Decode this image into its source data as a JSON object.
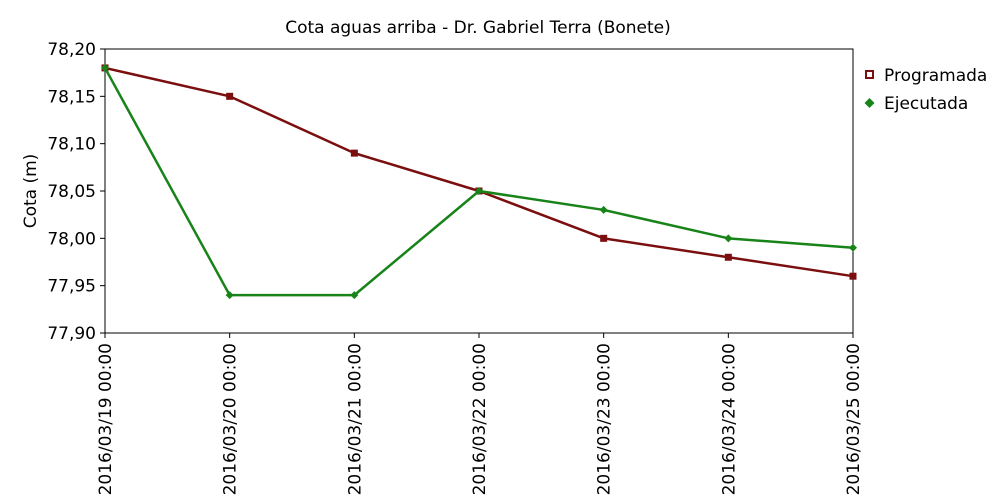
{
  "chart_data": {
    "type": "line",
    "title": "Cota aguas arriba - Dr. Gabriel Terra (Bonete)",
    "xlabel": "",
    "ylabel": "Cota (m)",
    "ylim": [
      77.9,
      78.2
    ],
    "yticks": [
      "78,20",
      "78,15",
      "78,10",
      "78,05",
      "78,00",
      "77,95",
      "77,90"
    ],
    "ytick_values": [
      78.2,
      78.15,
      78.1,
      78.05,
      78.0,
      77.95,
      77.9
    ],
    "categories": [
      "2016/03/19 00:00",
      "2016/03/20 00:00",
      "2016/03/21 00:00",
      "2016/03/22 00:00",
      "2016/03/23 00:00",
      "2016/03/24 00:00",
      "2016/03/25 00:00"
    ],
    "grid": false,
    "legend_position": "right",
    "series": [
      {
        "name": "Programada",
        "color": "#7b0f0f",
        "marker": "square",
        "values": [
          78.18,
          78.15,
          78.09,
          78.05,
          78.0,
          77.98,
          77.96
        ]
      },
      {
        "name": "Ejecutada",
        "color": "#188318",
        "marker": "diamond",
        "values": [
          78.18,
          77.94,
          77.94,
          78.05,
          78.03,
          78.0,
          77.99
        ]
      }
    ]
  }
}
